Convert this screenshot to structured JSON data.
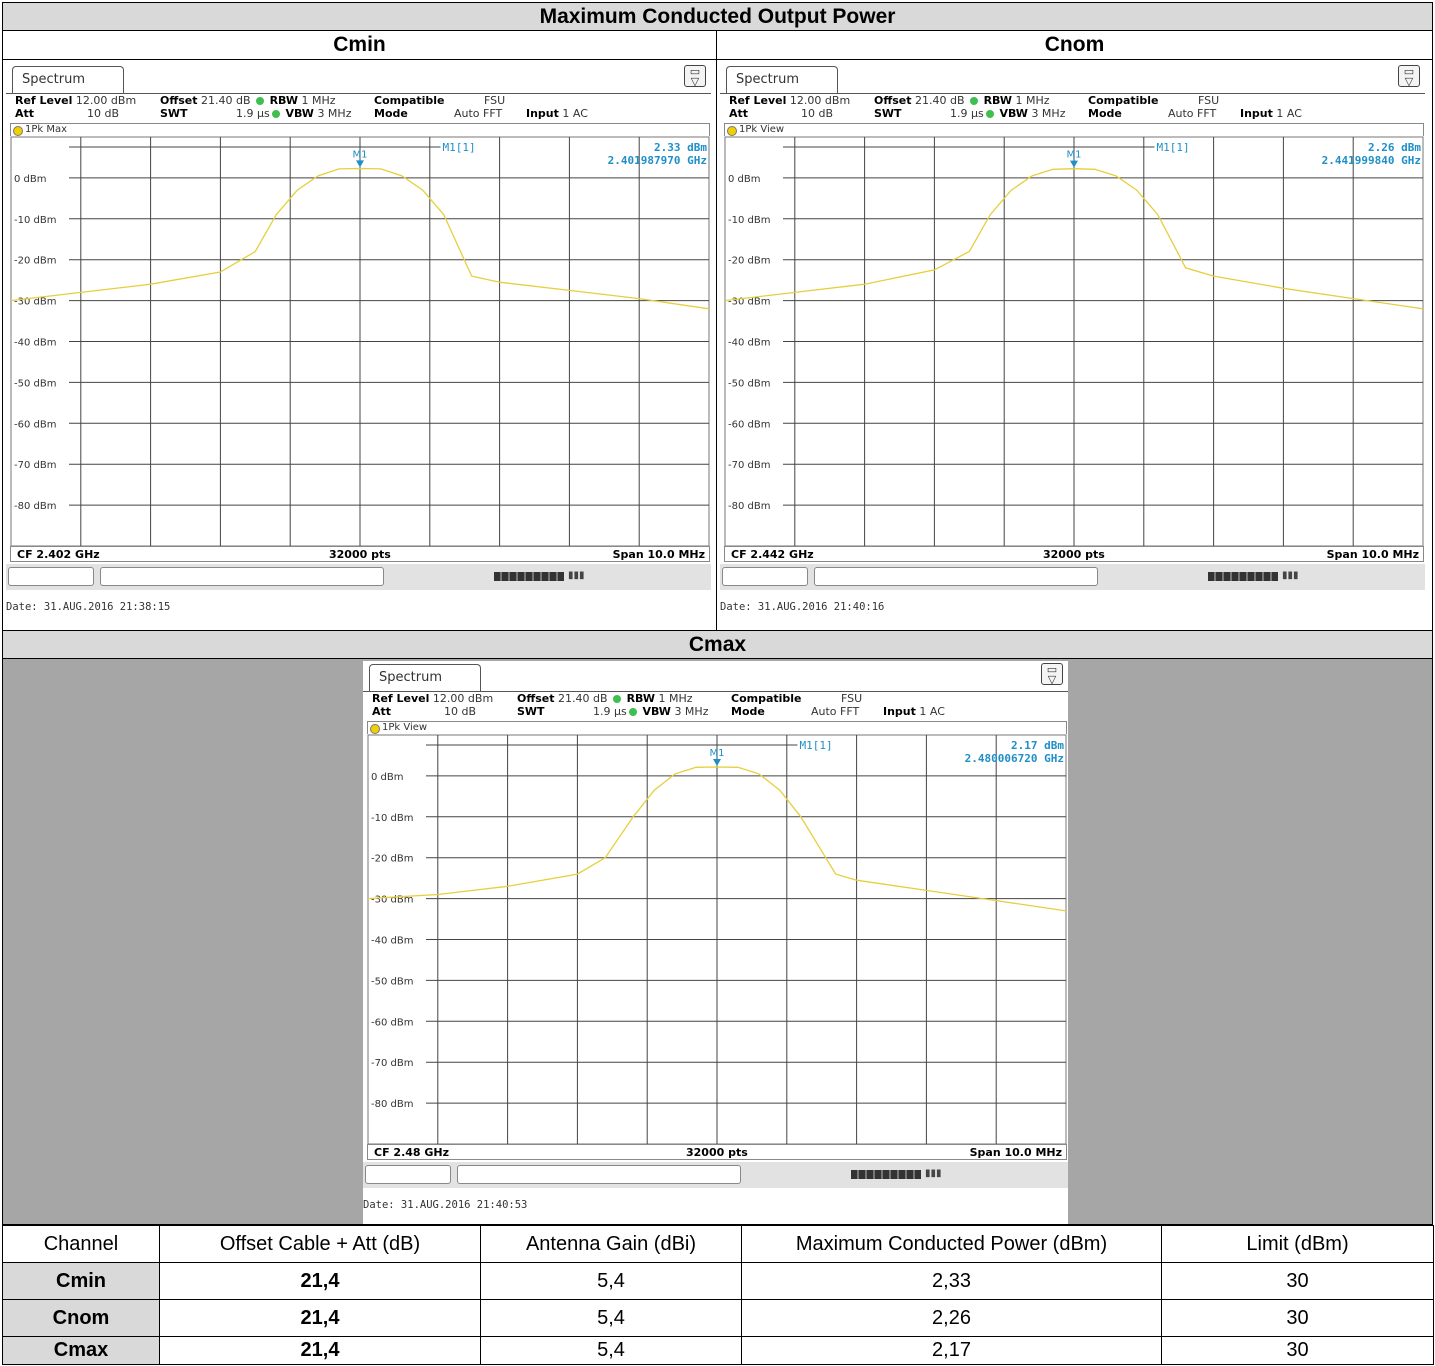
{
  "title": "Maximum Conducted Output Power",
  "sections": {
    "cmin": "Cmin",
    "cnom": "Cnom",
    "cmax": "Cmax"
  },
  "screens": [
    {
      "tab": "Spectrum",
      "ref_level_label": "Ref Level",
      "ref_level": "12.00 dBm",
      "att_label": "Att",
      "att": "10 dB",
      "offset_label": "Offset",
      "offset": "21.40 dB",
      "swt_label": "SWT",
      "swt": "1.9 µs",
      "rbw_label": "RBW",
      "rbw": "1 MHz",
      "vbw_label": "VBW",
      "vbw": "3 MHz",
      "compatible_label": "Compatible",
      "compatible": "FSU",
      "mode_label": "Mode",
      "mode": "Auto FFT",
      "input_label": "Input",
      "input": "1 AC",
      "trace_label": "1Pk Max",
      "marker_label": "M1[1]",
      "marker_value": "2.33 dBm",
      "marker_freq": "2.401987970 GHz",
      "marker_tag": "M1",
      "cf": "CF 2.402 GHz",
      "pts": "32000 pts",
      "span": "Span 10.0 MHz",
      "date": "Date: 31.AUG.2016  21:38:15"
    },
    {
      "tab": "Spectrum",
      "ref_level_label": "Ref Level",
      "ref_level": "12.00 dBm",
      "att_label": "Att",
      "att": "10 dB",
      "offset_label": "Offset",
      "offset": "21.40 dB",
      "swt_label": "SWT",
      "swt": "1.9 µs",
      "rbw_label": "RBW",
      "rbw": "1 MHz",
      "vbw_label": "VBW",
      "vbw": "3 MHz",
      "compatible_label": "Compatible",
      "compatible": "FSU",
      "mode_label": "Mode",
      "mode": "Auto FFT",
      "input_label": "Input",
      "input": "1 AC",
      "trace_label": "1Pk View",
      "marker_label": "M1[1]",
      "marker_value": "2.26 dBm",
      "marker_freq": "2.441999840 GHz",
      "marker_tag": "M1",
      "cf": "CF 2.442 GHz",
      "pts": "32000 pts",
      "span": "Span 10.0 MHz",
      "date": "Date: 31.AUG.2016  21:40:16"
    },
    {
      "tab": "Spectrum",
      "ref_level_label": "Ref Level",
      "ref_level": "12.00 dBm",
      "att_label": "Att",
      "att": "10 dB",
      "offset_label": "Offset",
      "offset": "21.40 dB",
      "swt_label": "SWT",
      "swt": "1.9 µs",
      "rbw_label": "RBW",
      "rbw": "1 MHz",
      "vbw_label": "VBW",
      "vbw": "3 MHz",
      "compatible_label": "Compatible",
      "compatible": "FSU",
      "mode_label": "Mode",
      "mode": "Auto FFT",
      "input_label": "Input",
      "input": "1 AC",
      "trace_label": "1Pk View",
      "marker_label": "M1[1]",
      "marker_value": "2.17 dBm",
      "marker_freq": "2.480006720 GHz",
      "marker_tag": "M1",
      "cf": "CF 2.48 GHz",
      "pts": "32000 pts",
      "span": "Span 10.0 MHz",
      "date": "Date: 31.AUG.2016  21:40:53"
    }
  ],
  "chart_data": [
    {
      "type": "line",
      "x_unit": "MHz offset from CF",
      "xlim": [
        -5,
        5
      ],
      "ylim": [
        -90,
        10
      ],
      "ytick_labels": [
        "0 dBm",
        "-10 dBm",
        "-20 dBm",
        "-30 dBm",
        "-40 dBm",
        "-50 dBm",
        "-60 dBm",
        "-70 dBm",
        "-80 dBm"
      ],
      "yticks": [
        0,
        -10,
        -20,
        -30,
        -40,
        -50,
        -60,
        -70,
        -80
      ],
      "grid": true,
      "series": [
        {
          "color": "#e6cf3c",
          "x": [
            -5,
            -4,
            -3,
            -2,
            -1.5,
            -1.2,
            -0.9,
            -0.6,
            -0.3,
            0,
            0.3,
            0.6,
            0.9,
            1.2,
            1.6,
            2,
            3,
            4,
            5
          ],
          "y": [
            -30,
            -28,
            -26,
            -23,
            -18,
            -9,
            -3,
            0.5,
            2.2,
            2.3,
            2.2,
            0.5,
            -3,
            -9,
            -24,
            -25.5,
            -27.5,
            -29.5,
            -32
          ]
        }
      ],
      "marker": {
        "x": 0,
        "y": 2.33
      }
    },
    {
      "type": "line",
      "x_unit": "MHz offset from CF",
      "xlim": [
        -5,
        5
      ],
      "ylim": [
        -90,
        10
      ],
      "ytick_labels": [
        "0 dBm",
        "-10 dBm",
        "-20 dBm",
        "-30 dBm",
        "-40 dBm",
        "-50 dBm",
        "-60 dBm",
        "-70 dBm",
        "-80 dBm"
      ],
      "yticks": [
        0,
        -10,
        -20,
        -30,
        -40,
        -50,
        -60,
        -70,
        -80
      ],
      "grid": true,
      "series": [
        {
          "color": "#e6cf3c",
          "x": [
            -5,
            -4,
            -3,
            -2,
            -1.5,
            -1.2,
            -0.9,
            -0.6,
            -0.3,
            0,
            0.3,
            0.6,
            0.9,
            1.2,
            1.6,
            2,
            3,
            4,
            5
          ],
          "y": [
            -30,
            -28,
            -26,
            -22.5,
            -18,
            -9,
            -3,
            0.5,
            2.1,
            2.26,
            2.1,
            0.5,
            -3,
            -9,
            -22,
            -24,
            -27,
            -29.5,
            -32
          ]
        }
      ],
      "marker": {
        "x": 0,
        "y": 2.26
      }
    },
    {
      "type": "line",
      "x_unit": "MHz offset from CF",
      "xlim": [
        -5,
        5
      ],
      "ylim": [
        -90,
        10
      ],
      "ytick_labels": [
        "0 dBm",
        "-10 dBm",
        "-20 dBm",
        "-30 dBm",
        "-40 dBm",
        "-50 dBm",
        "-60 dBm",
        "-70 dBm",
        "-80 dBm"
      ],
      "yticks": [
        0,
        -10,
        -20,
        -30,
        -40,
        -50,
        -60,
        -70,
        -80
      ],
      "grid": true,
      "series": [
        {
          "color": "#e6cf3c",
          "x": [
            -5,
            -4,
            -3,
            -2,
            -1.6,
            -1.2,
            -0.9,
            -0.6,
            -0.3,
            0,
            0.3,
            0.6,
            0.9,
            1.2,
            1.7,
            2,
            3,
            4,
            5
          ],
          "y": [
            -30,
            -29,
            -27,
            -24,
            -20,
            -10,
            -3.5,
            0.5,
            2.1,
            2.17,
            2.1,
            0.5,
            -3.5,
            -10,
            -24,
            -25.5,
            -28,
            -30.5,
            -33
          ]
        }
      ],
      "marker": {
        "x": 0,
        "y": 2.17
      }
    }
  ],
  "table": {
    "headers": [
      "Channel",
      "Offset Cable + Att (dB)",
      "Antenna Gain (dBi)",
      "Maximum Conducted Power (dBm)",
      "Limit (dBm)"
    ],
    "rows": [
      [
        "Cmin",
        "21,4",
        "5,4",
        "2,33",
        "30"
      ],
      [
        "Cnom",
        "21,4",
        "5,4",
        "2,26",
        "30"
      ],
      [
        "Cmax",
        "21,4",
        "5,4",
        "2,17",
        "30"
      ]
    ]
  }
}
